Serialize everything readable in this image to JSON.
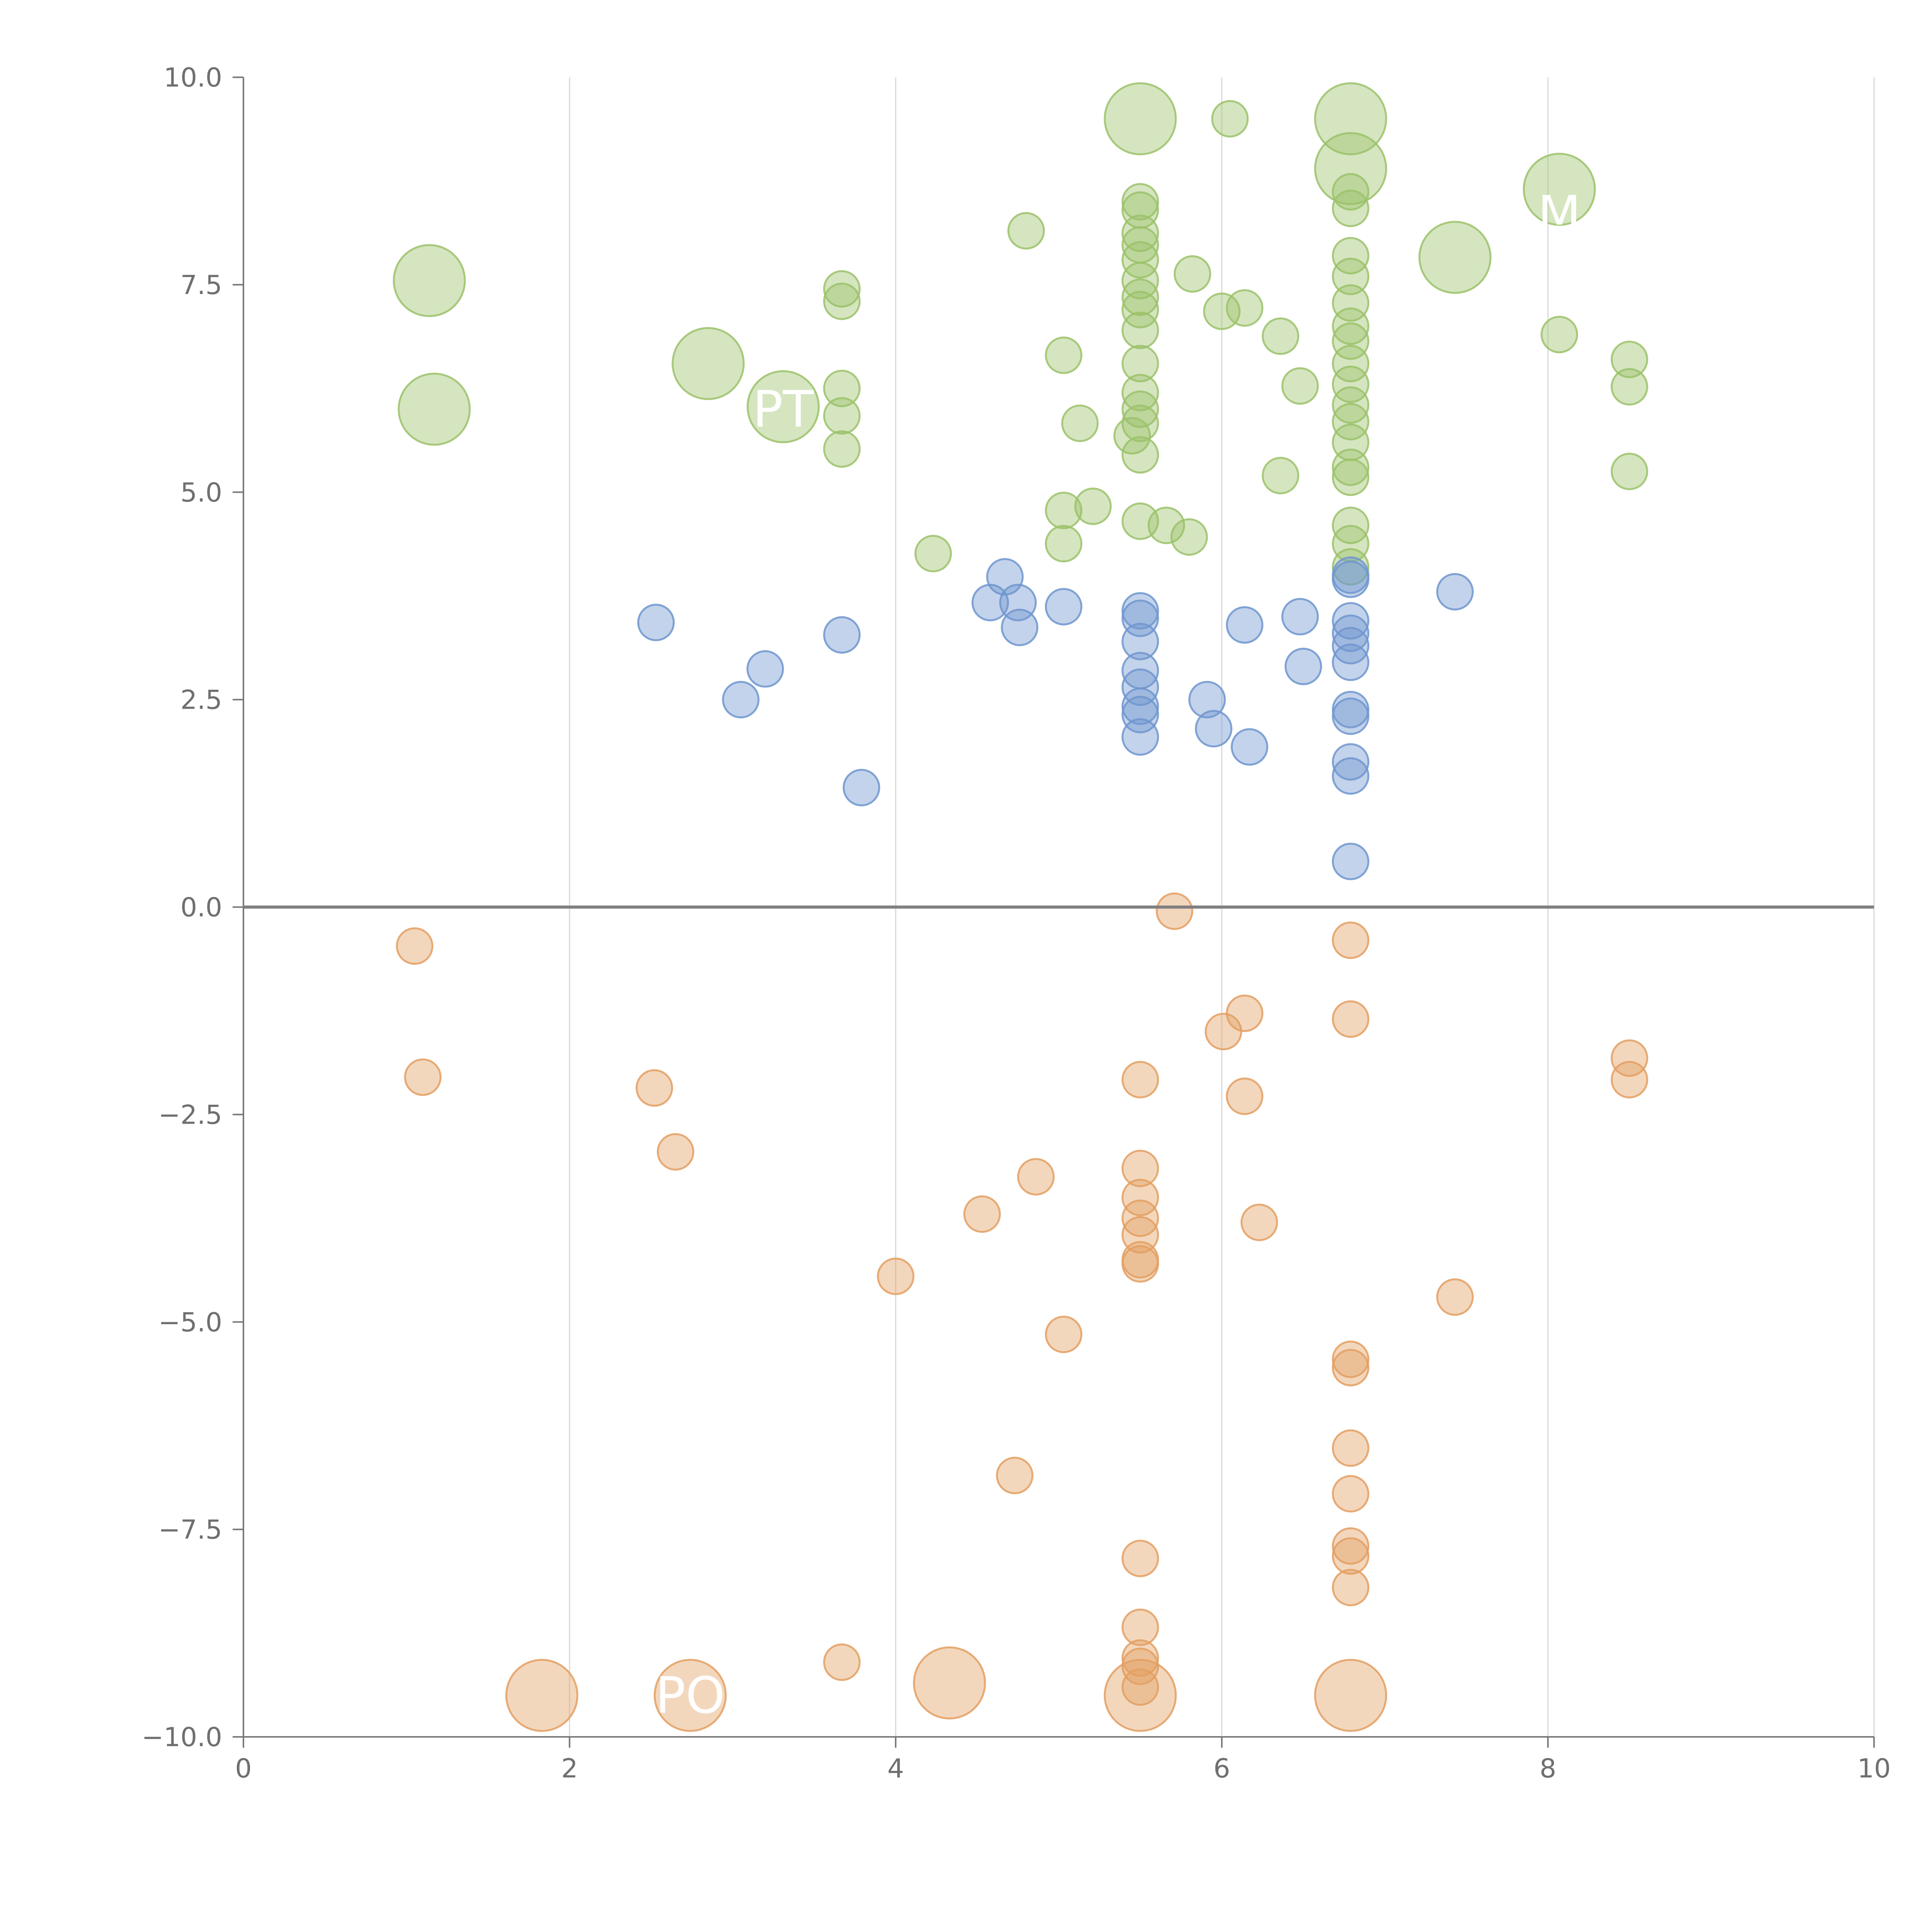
{
  "chart_data": {
    "type": "scatter",
    "title": "",
    "xlabel": "",
    "ylabel": "",
    "xlim": [
      0,
      10
    ],
    "ylim": [
      -10,
      10
    ],
    "x_ticks": [
      "0",
      "2",
      "4",
      "6",
      "8",
      "10"
    ],
    "y_ticks": [
      "10.0",
      "7.5",
      "5.0",
      "2.5",
      "0.0",
      "−2.5",
      "−5.0",
      "−7.5",
      "−10.0"
    ],
    "x_tick_values": [
      0,
      2,
      4,
      6,
      8,
      10
    ],
    "y_tick_values": [
      10,
      7.5,
      5,
      2.5,
      0,
      -2.5,
      -5,
      -7.5,
      -10
    ],
    "grid": "vertical",
    "zero_line": true,
    "colors": {
      "green": "#9bc26a",
      "blue": "#6f95cf",
      "orange": "#e39f62",
      "grid": "#d9d9d9",
      "axis": "#7a7a7a",
      "label": "#ffffff"
    },
    "series": [
      {
        "color": "green",
        "points": [
          {
            "x": 1.14,
            "y": 7.55,
            "r": 3
          },
          {
            "x": 1.17,
            "y": 6.0,
            "r": 3
          },
          {
            "x": 2.85,
            "y": 6.55,
            "r": 3
          },
          {
            "x": 3.31,
            "y": 6.03,
            "r": 3
          },
          {
            "x": 5.5,
            "y": 9.5,
            "r": 3
          },
          {
            "x": 6.79,
            "y": 9.5,
            "r": 3
          },
          {
            "x": 6.79,
            "y": 8.9,
            "r": 3
          },
          {
            "x": 8.07,
            "y": 8.65,
            "r": 3
          },
          {
            "x": 7.43,
            "y": 7.83,
            "r": 3
          },
          {
            "x": 3.67,
            "y": 7.45,
            "r": 1
          },
          {
            "x": 3.67,
            "y": 7.3,
            "r": 1
          },
          {
            "x": 3.67,
            "y": 6.25,
            "r": 1
          },
          {
            "x": 3.67,
            "y": 5.92,
            "r": 1
          },
          {
            "x": 3.67,
            "y": 5.52,
            "r": 1
          },
          {
            "x": 4.23,
            "y": 4.26,
            "r": 1
          },
          {
            "x": 4.8,
            "y": 8.15,
            "r": 1
          },
          {
            "x": 5.03,
            "y": 6.65,
            "r": 1
          },
          {
            "x": 5.13,
            "y": 5.83,
            "r": 1
          },
          {
            "x": 5.03,
            "y": 4.78,
            "r": 1
          },
          {
            "x": 5.21,
            "y": 4.83,
            "r": 1
          },
          {
            "x": 5.03,
            "y": 4.38,
            "r": 1
          },
          {
            "x": 5.5,
            "y": 8.5,
            "r": 1
          },
          {
            "x": 5.5,
            "y": 8.4,
            "r": 1
          },
          {
            "x": 5.5,
            "y": 8.12,
            "r": 1
          },
          {
            "x": 5.5,
            "y": 7.98,
            "r": 1
          },
          {
            "x": 5.5,
            "y": 7.8,
            "r": 1
          },
          {
            "x": 5.5,
            "y": 7.55,
            "r": 1
          },
          {
            "x": 5.5,
            "y": 7.35,
            "r": 1
          },
          {
            "x": 5.5,
            "y": 7.2,
            "r": 1
          },
          {
            "x": 5.5,
            "y": 6.95,
            "r": 1
          },
          {
            "x": 5.5,
            "y": 6.55,
            "r": 1
          },
          {
            "x": 5.5,
            "y": 6.2,
            "r": 1
          },
          {
            "x": 5.5,
            "y": 6.0,
            "r": 1
          },
          {
            "x": 5.5,
            "y": 5.83,
            "r": 1
          },
          {
            "x": 5.45,
            "y": 5.68,
            "r": 1
          },
          {
            "x": 5.5,
            "y": 5.45,
            "r": 1
          },
          {
            "x": 5.5,
            "y": 4.65,
            "r": 1
          },
          {
            "x": 5.66,
            "y": 4.6,
            "r": 1
          },
          {
            "x": 5.8,
            "y": 4.46,
            "r": 1
          },
          {
            "x": 6.05,
            "y": 9.5,
            "r": 1
          },
          {
            "x": 5.82,
            "y": 7.63,
            "r": 1
          },
          {
            "x": 6.0,
            "y": 7.18,
            "r": 1
          },
          {
            "x": 6.14,
            "y": 7.22,
            "r": 1
          },
          {
            "x": 6.36,
            "y": 6.88,
            "r": 1
          },
          {
            "x": 6.48,
            "y": 6.28,
            "r": 1
          },
          {
            "x": 6.36,
            "y": 5.2,
            "r": 1
          },
          {
            "x": 6.79,
            "y": 8.62,
            "r": 1
          },
          {
            "x": 6.79,
            "y": 8.42,
            "r": 1
          },
          {
            "x": 6.79,
            "y": 7.85,
            "r": 1
          },
          {
            "x": 6.79,
            "y": 7.6,
            "r": 1
          },
          {
            "x": 6.79,
            "y": 7.28,
            "r": 1
          },
          {
            "x": 6.79,
            "y": 7.0,
            "r": 1
          },
          {
            "x": 6.79,
            "y": 6.82,
            "r": 1
          },
          {
            "x": 6.79,
            "y": 6.55,
            "r": 1
          },
          {
            "x": 6.79,
            "y": 6.3,
            "r": 1
          },
          {
            "x": 6.79,
            "y": 6.05,
            "r": 1
          },
          {
            "x": 6.79,
            "y": 5.85,
            "r": 1
          },
          {
            "x": 6.79,
            "y": 5.6,
            "r": 1
          },
          {
            "x": 6.79,
            "y": 5.3,
            "r": 1
          },
          {
            "x": 6.79,
            "y": 5.18,
            "r": 1
          },
          {
            "x": 6.79,
            "y": 4.6,
            "r": 1
          },
          {
            "x": 6.79,
            "y": 4.38,
            "r": 1
          },
          {
            "x": 6.79,
            "y": 4.1,
            "r": 1
          },
          {
            "x": 8.07,
            "y": 6.9,
            "r": 1
          },
          {
            "x": 8.5,
            "y": 6.6,
            "r": 1
          },
          {
            "x": 8.5,
            "y": 6.27,
            "r": 1
          },
          {
            "x": 8.5,
            "y": 5.25,
            "r": 1
          }
        ]
      },
      {
        "color": "blue",
        "points": [
          {
            "x": 2.53,
            "y": 3.43,
            "r": 1
          },
          {
            "x": 3.05,
            "y": 2.5,
            "r": 1
          },
          {
            "x": 3.2,
            "y": 2.87,
            "r": 1
          },
          {
            "x": 3.67,
            "y": 3.28,
            "r": 1
          },
          {
            "x": 3.79,
            "y": 1.44,
            "r": 1
          },
          {
            "x": 4.58,
            "y": 3.67,
            "r": 1
          },
          {
            "x": 4.67,
            "y": 3.98,
            "r": 1
          },
          {
            "x": 4.75,
            "y": 3.67,
            "r": 1
          },
          {
            "x": 4.76,
            "y": 3.37,
            "r": 1
          },
          {
            "x": 5.03,
            "y": 3.62,
            "r": 1
          },
          {
            "x": 5.5,
            "y": 3.57,
            "r": 1
          },
          {
            "x": 5.5,
            "y": 3.48,
            "r": 1
          },
          {
            "x": 5.5,
            "y": 3.2,
            "r": 1
          },
          {
            "x": 5.5,
            "y": 2.85,
            "r": 1
          },
          {
            "x": 5.5,
            "y": 2.65,
            "r": 1
          },
          {
            "x": 5.5,
            "y": 2.42,
            "r": 1
          },
          {
            "x": 5.5,
            "y": 2.32,
            "r": 1
          },
          {
            "x": 5.5,
            "y": 2.05,
            "r": 1
          },
          {
            "x": 5.91,
            "y": 2.5,
            "r": 1
          },
          {
            "x": 5.95,
            "y": 2.15,
            "r": 1
          },
          {
            "x": 6.14,
            "y": 3.4,
            "r": 1
          },
          {
            "x": 6.17,
            "y": 1.93,
            "r": 1
          },
          {
            "x": 6.48,
            "y": 3.5,
            "r": 1
          },
          {
            "x": 6.5,
            "y": 2.9,
            "r": 1
          },
          {
            "x": 6.79,
            "y": 4.0,
            "r": 1
          },
          {
            "x": 6.79,
            "y": 3.95,
            "r": 1
          },
          {
            "x": 6.79,
            "y": 3.45,
            "r": 1
          },
          {
            "x": 6.79,
            "y": 3.3,
            "r": 1
          },
          {
            "x": 6.79,
            "y": 3.15,
            "r": 1
          },
          {
            "x": 6.79,
            "y": 2.95,
            "r": 1
          },
          {
            "x": 6.79,
            "y": 2.38,
            "r": 1
          },
          {
            "x": 6.79,
            "y": 2.3,
            "r": 1
          },
          {
            "x": 6.79,
            "y": 1.75,
            "r": 1
          },
          {
            "x": 6.79,
            "y": 1.58,
            "r": 1
          },
          {
            "x": 6.79,
            "y": 0.55,
            "r": 1
          },
          {
            "x": 7.43,
            "y": 3.8,
            "r": 1
          }
        ]
      },
      {
        "color": "orange",
        "points": [
          {
            "x": 1.05,
            "y": -0.47,
            "r": 1
          },
          {
            "x": 1.1,
            "y": -2.05,
            "r": 1
          },
          {
            "x": 2.52,
            "y": -2.18,
            "r": 1
          },
          {
            "x": 2.65,
            "y": -2.95,
            "r": 1
          },
          {
            "x": 4.0,
            "y": -4.45,
            "r": 1
          },
          {
            "x": 4.53,
            "y": -3.7,
            "r": 1
          },
          {
            "x": 4.86,
            "y": -3.25,
            "r": 1
          },
          {
            "x": 5.03,
            "y": -5.15,
            "r": 1
          },
          {
            "x": 4.73,
            "y": -6.85,
            "r": 1
          },
          {
            "x": 3.67,
            "y": -9.1,
            "r": 1
          },
          {
            "x": 5.71,
            "y": -0.05,
            "r": 1
          },
          {
            "x": 5.5,
            "y": -2.08,
            "r": 1
          },
          {
            "x": 5.5,
            "y": -3.15,
            "r": 1
          },
          {
            "x": 5.5,
            "y": -3.5,
            "r": 1
          },
          {
            "x": 5.5,
            "y": -3.75,
            "r": 1
          },
          {
            "x": 5.5,
            "y": -3.95,
            "r": 1
          },
          {
            "x": 5.5,
            "y": -4.25,
            "r": 1
          },
          {
            "x": 5.5,
            "y": -4.3,
            "r": 1
          },
          {
            "x": 5.5,
            "y": -7.85,
            "r": 1
          },
          {
            "x": 5.5,
            "y": -8.68,
            "r": 1
          },
          {
            "x": 5.5,
            "y": -9.05,
            "r": 1
          },
          {
            "x": 5.5,
            "y": -9.15,
            "r": 1
          },
          {
            "x": 5.5,
            "y": -9.4,
            "r": 1
          },
          {
            "x": 6.01,
            "y": -1.5,
            "r": 1
          },
          {
            "x": 6.14,
            "y": -1.28,
            "r": 1
          },
          {
            "x": 6.14,
            "y": -2.28,
            "r": 1
          },
          {
            "x": 6.23,
            "y": -3.8,
            "r": 1
          },
          {
            "x": 6.79,
            "y": -0.4,
            "r": 1
          },
          {
            "x": 6.79,
            "y": -1.35,
            "r": 1
          },
          {
            "x": 6.79,
            "y": -5.45,
            "r": 1
          },
          {
            "x": 6.79,
            "y": -5.55,
            "r": 1
          },
          {
            "x": 6.79,
            "y": -6.52,
            "r": 1
          },
          {
            "x": 6.79,
            "y": -7.07,
            "r": 1
          },
          {
            "x": 6.79,
            "y": -7.7,
            "r": 1
          },
          {
            "x": 6.79,
            "y": -7.82,
            "r": 1
          },
          {
            "x": 6.79,
            "y": -8.2,
            "r": 1
          },
          {
            "x": 7.43,
            "y": -4.7,
            "r": 1
          },
          {
            "x": 8.5,
            "y": -1.82,
            "r": 1
          },
          {
            "x": 8.5,
            "y": -2.08,
            "r": 1
          },
          {
            "x": 1.83,
            "y": -9.5,
            "r": 3
          },
          {
            "x": 2.74,
            "y": -9.5,
            "r": 3
          },
          {
            "x": 4.33,
            "y": -9.35,
            "r": 3
          },
          {
            "x": 5.5,
            "y": -9.5,
            "r": 3
          },
          {
            "x": 6.79,
            "y": -9.5,
            "r": 3
          }
        ]
      }
    ],
    "annotations": [
      {
        "text": "PT",
        "x": 3.31,
        "y": 6.0
      },
      {
        "text": "M",
        "x": 8.07,
        "y": 8.35
      },
      {
        "text": "PO",
        "x": 2.74,
        "y": -9.5
      }
    ]
  }
}
